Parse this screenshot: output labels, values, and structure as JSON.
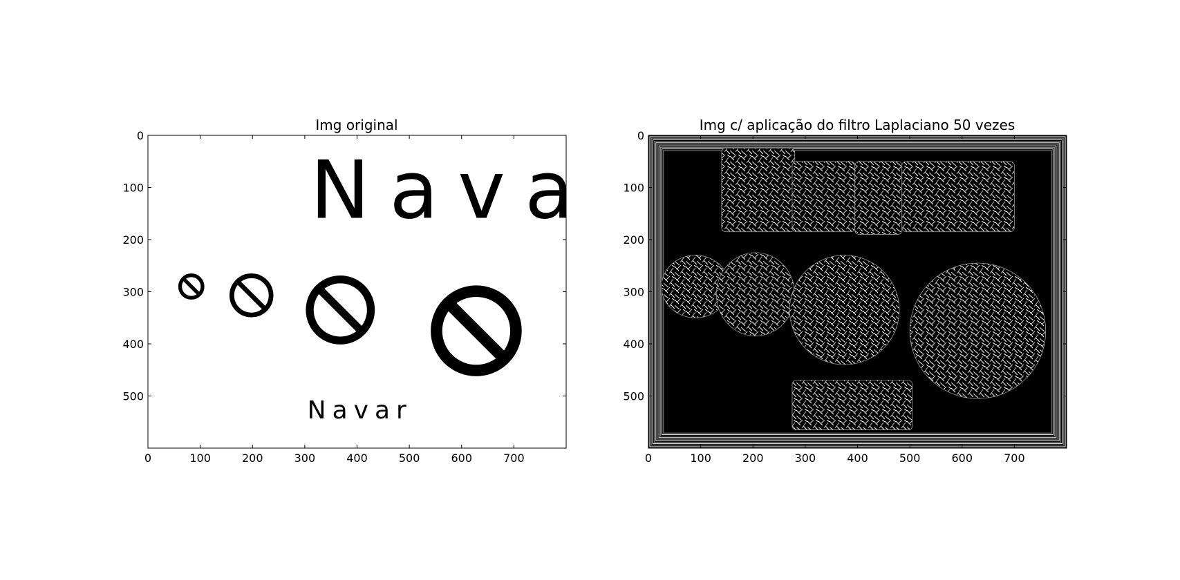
{
  "chart_data": [
    {
      "type": "image",
      "title": "Img original",
      "xlabel": "",
      "ylabel": "",
      "xlim": [
        0,
        800
      ],
      "ylim": [
        600,
        0
      ],
      "xticks": [
        0,
        100,
        200,
        300,
        400,
        500,
        600,
        700
      ],
      "yticks": [
        0,
        100,
        200,
        300,
        400,
        500
      ],
      "content": {
        "background": "#ffffff",
        "foreground": "#000000",
        "texts": [
          {
            "text": "Navar",
            "x": 310,
            "y": 158,
            "size": "large"
          },
          {
            "text": "Navar",
            "x": 305,
            "y": 543,
            "size": "small"
          }
        ],
        "no_sign_shapes": [
          {
            "cx": 83,
            "cy": 290,
            "r": 25,
            "thickness": 7
          },
          {
            "cx": 198,
            "cy": 307,
            "r": 42,
            "thickness": 9
          },
          {
            "cx": 368,
            "cy": 335,
            "r": 66,
            "thickness": 15
          },
          {
            "cx": 628,
            "cy": 375,
            "r": 87,
            "thickness": 22
          }
        ]
      }
    },
    {
      "type": "image",
      "title": "Img c/ aplicação do filtro Laplaciano 50 vezes",
      "xlabel": "",
      "ylabel": "",
      "xlim": [
        0,
        800
      ],
      "ylim": [
        600,
        0
      ],
      "xticks": [
        0,
        100,
        200,
        300,
        400,
        500,
        600,
        700
      ],
      "yticks": [
        0,
        100,
        200,
        300,
        400,
        500
      ],
      "content": {
        "background": "#000000",
        "noise_regions": [
          {
            "shape": "rect",
            "x0": 140,
            "y0": 25,
            "x1": 280,
            "y1": 185
          },
          {
            "shape": "rect",
            "x0": 275,
            "y0": 50,
            "x1": 395,
            "y1": 185
          },
          {
            "shape": "rect",
            "x0": 395,
            "y0": 50,
            "x1": 485,
            "y1": 190
          },
          {
            "shape": "rect",
            "x0": 485,
            "y0": 50,
            "x1": 700,
            "y1": 185
          },
          {
            "shape": "ellipse",
            "cx": 90,
            "cy": 290,
            "rx": 65,
            "ry": 60
          },
          {
            "shape": "ellipse",
            "cx": 205,
            "cy": 305,
            "rx": 75,
            "ry": 80
          },
          {
            "shape": "ellipse",
            "cx": 375,
            "cy": 335,
            "rx": 105,
            "ry": 105
          },
          {
            "shape": "ellipse",
            "cx": 630,
            "cy": 375,
            "rx": 130,
            "ry": 130
          },
          {
            "shape": "rect",
            "x0": 275,
            "y0": 470,
            "x1": 505,
            "y1": 565
          }
        ]
      }
    }
  ]
}
